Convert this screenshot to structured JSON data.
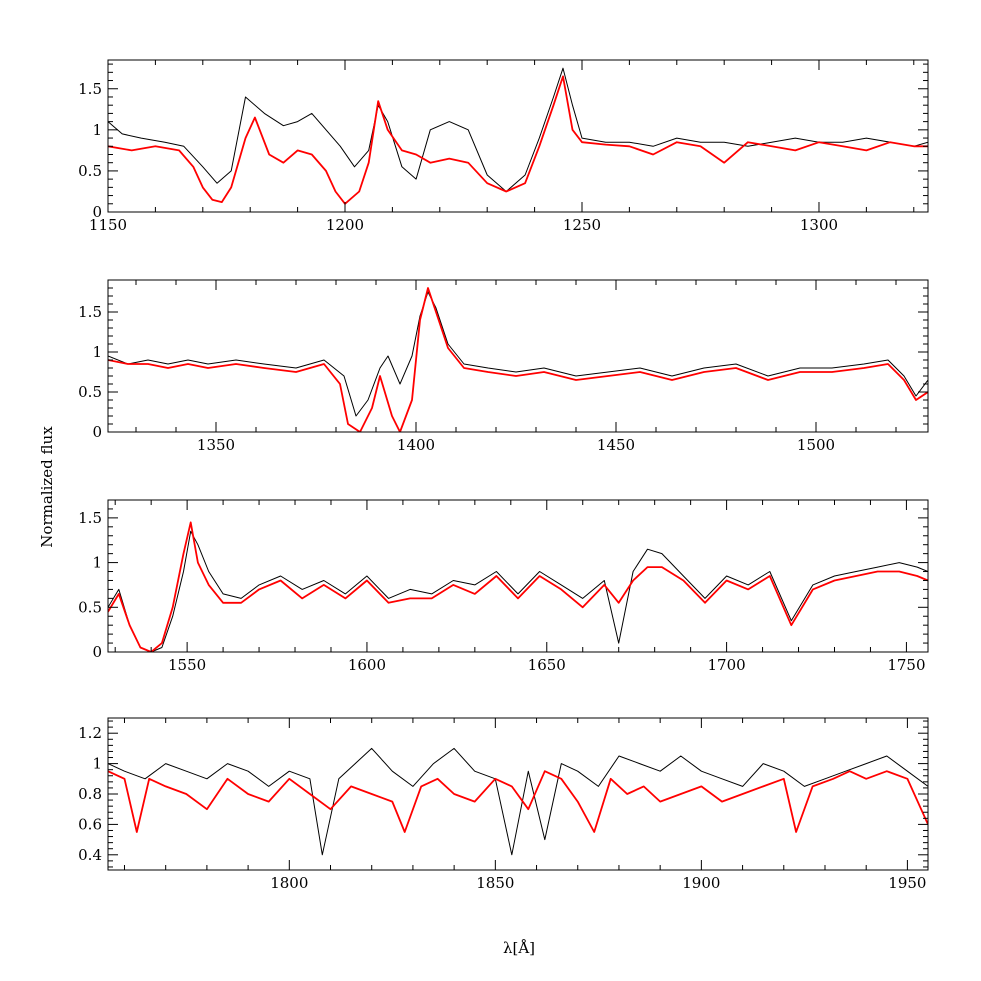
{
  "chart_data": [
    {
      "type": "line",
      "panel": 1,
      "xlim": [
        1150,
        1323
      ],
      "ylim": [
        0,
        1.85
      ],
      "xticks": [
        1150,
        1200,
        1250,
        1300
      ],
      "xtick_labels": [
        "1150",
        "1200",
        "1250",
        "1300"
      ],
      "yticks": [
        0,
        0.5,
        1,
        1.5
      ],
      "ytick_labels": [
        "0",
        "0.5",
        "1",
        "1.5"
      ],
      "series": [
        {
          "color": "#000000",
          "x": [
            1150,
            1153,
            1157,
            1162,
            1166,
            1170,
            1173,
            1176,
            1179,
            1183,
            1187,
            1190,
            1193,
            1196,
            1199,
            1202,
            1205,
            1207,
            1209,
            1212,
            1215,
            1218,
            1222,
            1226,
            1230,
            1234,
            1238,
            1241,
            1244,
            1246,
            1248,
            1250,
            1255,
            1260,
            1265,
            1270,
            1275,
            1280,
            1285,
            1290,
            1295,
            1300,
            1305,
            1310,
            1315,
            1320,
            1323
          ],
          "y": [
            1.1,
            0.95,
            0.9,
            0.85,
            0.8,
            0.55,
            0.35,
            0.5,
            1.4,
            1.2,
            1.05,
            1.1,
            1.2,
            1.0,
            0.8,
            0.55,
            0.75,
            1.3,
            1.1,
            0.55,
            0.4,
            1.0,
            1.1,
            1.0,
            0.45,
            0.25,
            0.45,
            0.9,
            1.4,
            1.75,
            1.3,
            0.9,
            0.85,
            0.85,
            0.8,
            0.9,
            0.85,
            0.85,
            0.8,
            0.85,
            0.9,
            0.85,
            0.85,
            0.9,
            0.85,
            0.8,
            0.85
          ]
        },
        {
          "color": "#ff0000",
          "x": [
            1150,
            1155,
            1160,
            1165,
            1168,
            1170,
            1172,
            1174,
            1176,
            1179,
            1181,
            1184,
            1187,
            1190,
            1193,
            1196,
            1198,
            1200,
            1203,
            1205,
            1207,
            1209,
            1212,
            1215,
            1218,
            1222,
            1226,
            1230,
            1234,
            1238,
            1241,
            1244,
            1246,
            1248,
            1250,
            1255,
            1260,
            1265,
            1270,
            1275,
            1280,
            1285,
            1290,
            1295,
            1300,
            1305,
            1310,
            1315,
            1320,
            1323
          ],
          "y": [
            0.8,
            0.75,
            0.8,
            0.75,
            0.55,
            0.3,
            0.15,
            0.12,
            0.3,
            0.9,
            1.15,
            0.7,
            0.6,
            0.75,
            0.7,
            0.5,
            0.25,
            0.1,
            0.25,
            0.6,
            1.35,
            1.0,
            0.75,
            0.7,
            0.6,
            0.65,
            0.6,
            0.35,
            0.25,
            0.35,
            0.8,
            1.3,
            1.65,
            1.0,
            0.85,
            0.82,
            0.8,
            0.7,
            0.85,
            0.8,
            0.6,
            0.85,
            0.8,
            0.75,
            0.85,
            0.8,
            0.75,
            0.85,
            0.8,
            0.8
          ]
        }
      ]
    },
    {
      "type": "line",
      "panel": 2,
      "xlim": [
        1323,
        1528
      ],
      "ylim": [
        0,
        1.9
      ],
      "xticks": [
        1350,
        1400,
        1450,
        1500
      ],
      "xtick_labels": [
        "1350",
        "1400",
        "1450",
        "1500"
      ],
      "yticks": [
        0,
        0.5,
        1,
        1.5
      ],
      "ytick_labels": [
        "0",
        "0.5",
        "1",
        "1.5"
      ],
      "ylabel": "Normalized flux",
      "series": [
        {
          "color": "#000000",
          "x": [
            1323,
            1328,
            1333,
            1338,
            1343,
            1348,
            1355,
            1362,
            1370,
            1377,
            1382,
            1385,
            1388,
            1391,
            1393,
            1396,
            1399,
            1401,
            1403,
            1405,
            1408,
            1412,
            1418,
            1425,
            1432,
            1440,
            1448,
            1456,
            1464,
            1472,
            1480,
            1488,
            1496,
            1504,
            1512,
            1518,
            1522,
            1525,
            1528
          ],
          "y": [
            0.95,
            0.85,
            0.9,
            0.85,
            0.9,
            0.85,
            0.9,
            0.85,
            0.8,
            0.9,
            0.7,
            0.2,
            0.4,
            0.8,
            0.95,
            0.6,
            0.95,
            1.45,
            1.75,
            1.55,
            1.1,
            0.85,
            0.8,
            0.75,
            0.8,
            0.7,
            0.75,
            0.8,
            0.7,
            0.8,
            0.85,
            0.7,
            0.8,
            0.8,
            0.85,
            0.9,
            0.7,
            0.45,
            0.65
          ]
        },
        {
          "color": "#ff0000",
          "x": [
            1323,
            1328,
            1333,
            1338,
            1343,
            1348,
            1355,
            1362,
            1370,
            1377,
            1381,
            1383,
            1386,
            1389,
            1391,
            1394,
            1396,
            1399,
            1401,
            1403,
            1405,
            1408,
            1412,
            1418,
            1425,
            1432,
            1440,
            1448,
            1456,
            1464,
            1472,
            1480,
            1488,
            1496,
            1504,
            1512,
            1518,
            1522,
            1525,
            1528
          ],
          "y": [
            0.9,
            0.85,
            0.85,
            0.8,
            0.85,
            0.8,
            0.85,
            0.8,
            0.75,
            0.85,
            0.6,
            0.1,
            0.0,
            0.3,
            0.7,
            0.2,
            0.0,
            0.4,
            1.4,
            1.8,
            1.5,
            1.05,
            0.8,
            0.75,
            0.7,
            0.75,
            0.65,
            0.7,
            0.75,
            0.65,
            0.75,
            0.8,
            0.65,
            0.75,
            0.75,
            0.8,
            0.85,
            0.65,
            0.4,
            0.5
          ]
        }
      ]
    },
    {
      "type": "line",
      "panel": 3,
      "xlim": [
        1528,
        1756
      ],
      "ylim": [
        0,
        1.7
      ],
      "xticks": [
        1550,
        1600,
        1650,
        1700,
        1750
      ],
      "xtick_labels": [
        "1550",
        "1600",
        "1650",
        "1700",
        "1750"
      ],
      "yticks": [
        0,
        0.5,
        1,
        1.5
      ],
      "ytick_labels": [
        "0",
        "0.5",
        "1",
        "1.5"
      ],
      "series": [
        {
          "color": "#000000",
          "x": [
            1528,
            1531,
            1534,
            1537,
            1540,
            1543,
            1546,
            1549,
            1551,
            1553,
            1556,
            1560,
            1565,
            1570,
            1576,
            1582,
            1588,
            1594,
            1600,
            1606,
            1612,
            1618,
            1624,
            1630,
            1636,
            1642,
            1648,
            1654,
            1660,
            1666,
            1670,
            1674,
            1678,
            1682,
            1688,
            1694,
            1700,
            1706,
            1712,
            1718,
            1724,
            1730,
            1736,
            1742,
            1748,
            1753,
            1756
          ],
          "y": [
            0.5,
            0.7,
            0.3,
            0.05,
            0.0,
            0.05,
            0.4,
            0.9,
            1.35,
            1.2,
            0.9,
            0.65,
            0.6,
            0.75,
            0.85,
            0.7,
            0.8,
            0.65,
            0.85,
            0.6,
            0.7,
            0.65,
            0.8,
            0.75,
            0.9,
            0.65,
            0.9,
            0.75,
            0.6,
            0.8,
            0.1,
            0.9,
            1.15,
            1.1,
            0.85,
            0.6,
            0.85,
            0.75,
            0.9,
            0.35,
            0.75,
            0.85,
            0.9,
            0.95,
            1.0,
            0.95,
            0.9
          ]
        },
        {
          "color": "#ff0000",
          "x": [
            1528,
            1531,
            1534,
            1537,
            1540,
            1543,
            1546,
            1549,
            1551,
            1553,
            1556,
            1560,
            1565,
            1570,
            1576,
            1582,
            1588,
            1594,
            1600,
            1606,
            1612,
            1618,
            1624,
            1630,
            1636,
            1642,
            1648,
            1654,
            1660,
            1666,
            1670,
            1674,
            1678,
            1682,
            1688,
            1694,
            1700,
            1706,
            1712,
            1718,
            1724,
            1730,
            1736,
            1742,
            1748,
            1753,
            1756
          ],
          "y": [
            0.45,
            0.65,
            0.3,
            0.05,
            0.0,
            0.1,
            0.5,
            1.1,
            1.45,
            1.0,
            0.75,
            0.55,
            0.55,
            0.7,
            0.8,
            0.6,
            0.75,
            0.6,
            0.8,
            0.55,
            0.6,
            0.6,
            0.75,
            0.65,
            0.85,
            0.6,
            0.85,
            0.7,
            0.5,
            0.75,
            0.55,
            0.8,
            0.95,
            0.95,
            0.8,
            0.55,
            0.8,
            0.7,
            0.85,
            0.3,
            0.7,
            0.8,
            0.85,
            0.9,
            0.9,
            0.85,
            0.8
          ]
        }
      ]
    },
    {
      "type": "line",
      "panel": 4,
      "xlim": [
        1756,
        1955
      ],
      "ylim": [
        0.3,
        1.3
      ],
      "xticks": [
        1800,
        1850,
        1900,
        1950
      ],
      "xtick_labels": [
        "1800",
        "1850",
        "1900",
        "1950"
      ],
      "yticks": [
        0.4,
        0.6,
        0.8,
        1,
        1.2
      ],
      "ytick_labels": [
        "0.4",
        "0.6",
        "0.8",
        "1",
        "1.2"
      ],
      "xlabel": "λ[Å]",
      "series": [
        {
          "color": "#000000",
          "x": [
            1756,
            1760,
            1765,
            1770,
            1775,
            1780,
            1785,
            1790,
            1795,
            1800,
            1805,
            1808,
            1812,
            1816,
            1820,
            1825,
            1830,
            1835,
            1840,
            1845,
            1850,
            1854,
            1858,
            1862,
            1866,
            1870,
            1875,
            1880,
            1885,
            1890,
            1895,
            1900,
            1905,
            1910,
            1915,
            1920,
            1925,
            1930,
            1935,
            1940,
            1945,
            1950,
            1955
          ],
          "y": [
            1.0,
            0.95,
            0.9,
            1.0,
            0.95,
            0.9,
            1.0,
            0.95,
            0.85,
            0.95,
            0.9,
            0.4,
            0.9,
            1.0,
            1.1,
            0.95,
            0.85,
            1.0,
            1.1,
            0.95,
            0.9,
            0.4,
            0.95,
            0.5,
            1.0,
            0.95,
            0.85,
            1.05,
            1.0,
            0.95,
            1.05,
            0.95,
            0.9,
            0.85,
            1.0,
            0.95,
            0.85,
            0.9,
            0.95,
            1.0,
            1.05,
            0.95,
            0.85
          ]
        },
        {
          "color": "#ff0000",
          "x": [
            1756,
            1760,
            1763,
            1766,
            1770,
            1775,
            1780,
            1785,
            1790,
            1795,
            1800,
            1805,
            1810,
            1815,
            1820,
            1825,
            1828,
            1832,
            1836,
            1840,
            1845,
            1850,
            1854,
            1858,
            1862,
            1866,
            1870,
            1874,
            1878,
            1882,
            1886,
            1890,
            1895,
            1900,
            1905,
            1910,
            1915,
            1920,
            1923,
            1927,
            1932,
            1936,
            1940,
            1945,
            1950,
            1955
          ],
          "y": [
            0.95,
            0.9,
            0.55,
            0.9,
            0.85,
            0.8,
            0.7,
            0.9,
            0.8,
            0.75,
            0.9,
            0.8,
            0.7,
            0.85,
            0.8,
            0.75,
            0.55,
            0.85,
            0.9,
            0.8,
            0.75,
            0.9,
            0.85,
            0.7,
            0.95,
            0.9,
            0.75,
            0.55,
            0.9,
            0.8,
            0.85,
            0.75,
            0.8,
            0.85,
            0.75,
            0.8,
            0.85,
            0.9,
            0.55,
            0.85,
            0.9,
            0.95,
            0.9,
            0.95,
            0.9,
            0.6
          ]
        }
      ]
    }
  ]
}
